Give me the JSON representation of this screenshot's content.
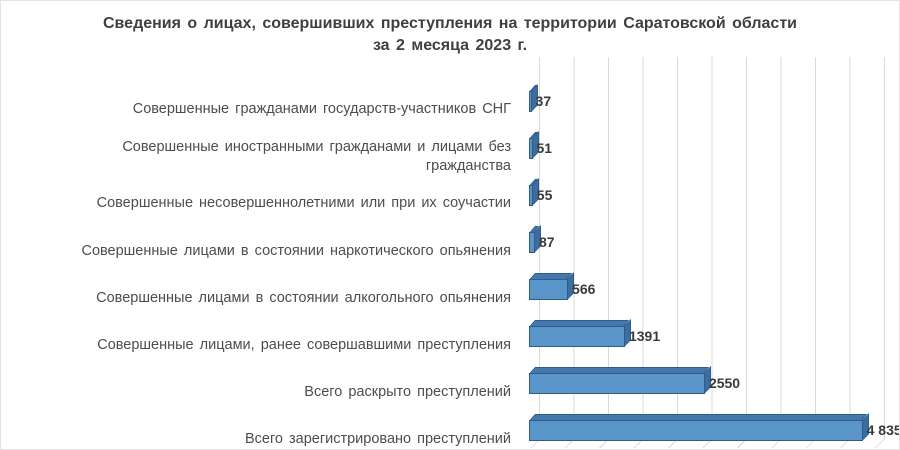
{
  "title": {
    "line1": "Сведения о лицах, совершивших преступления на территории Саратовской области",
    "line2": "за 2 месяца 2023 г."
  },
  "chart_data": {
    "type": "bar",
    "orientation": "horizontal",
    "style": "3d",
    "title": "Сведения о лицах, совершивших преступления на территории Саратовской области за 2 месяца 2023 г.",
    "categories": [
      "Совершенные гражданами государств-участников СНГ",
      "Совершенные иностранными гражданами и лицами без гражданства",
      "Совершенные несовершеннолетними или при их соучастии",
      "Совершенные лицами в состоянии наркотического опьянения",
      "Совершенные лицами в состоянии алкогольного опьянения",
      "Совершенные лицами, ранее совершавшими преступления",
      "Всего раскрыто преступлений",
      "Всего зарегистрировано преступлений"
    ],
    "values": [
      37,
      51,
      55,
      87,
      566,
      1391,
      2550,
      4835
    ],
    "value_labels": [
      "37",
      "51",
      "55",
      "87",
      "566",
      "1391",
      "2550",
      "4 835"
    ],
    "xlim": [
      0,
      5000
    ],
    "gridline_interval": 500,
    "grid": true,
    "legend": false,
    "colors": {
      "bar_front": "#5a95ca",
      "bar_top": "#4579ad",
      "bar_side": "#3c6d9d",
      "bar_outline": "#2e5d8c",
      "gridline": "#d9d9d9",
      "text": "#3f3f3f"
    }
  }
}
